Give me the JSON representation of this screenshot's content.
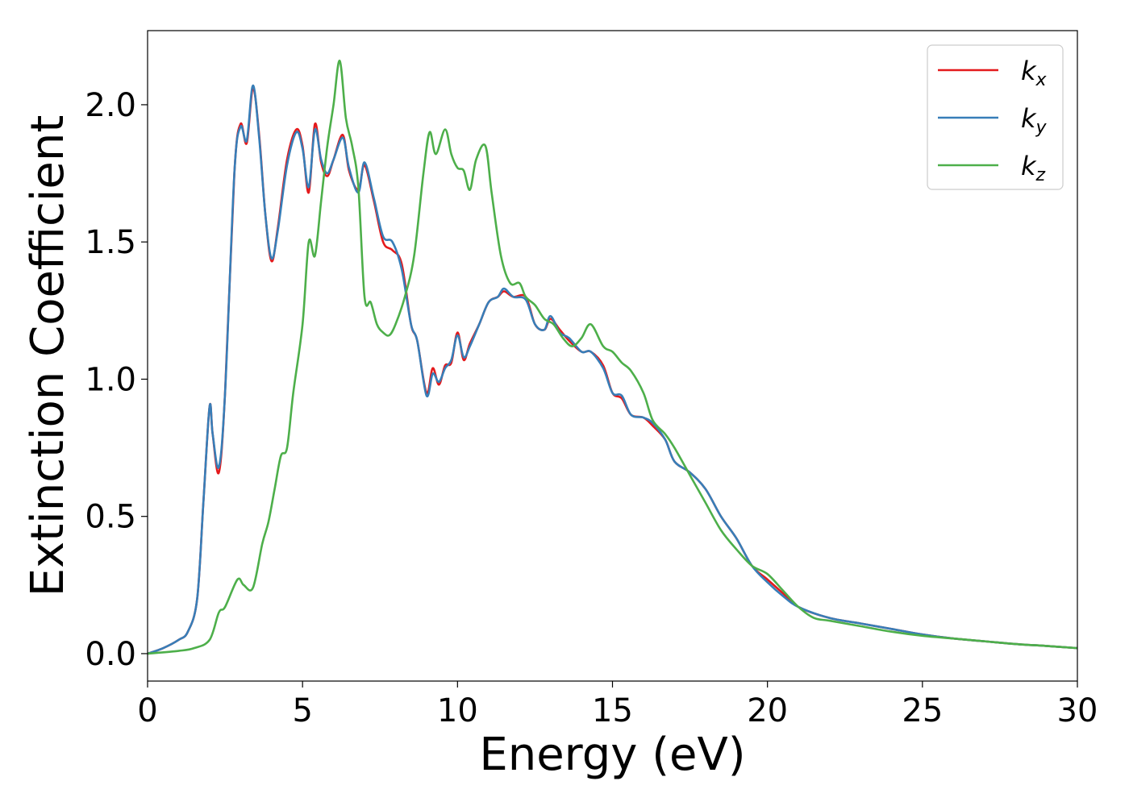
{
  "chart_data": {
    "type": "line",
    "xlabel": "Energy (eV)",
    "ylabel": "Extinction Coefficient",
    "xlim": [
      0,
      30
    ],
    "ylim": [
      -0.1,
      2.27
    ],
    "xticks": [
      0,
      5,
      10,
      15,
      20,
      25,
      30
    ],
    "xtick_labels": [
      "0",
      "5",
      "10",
      "15",
      "20",
      "25",
      "30"
    ],
    "yticks": [
      0.0,
      0.5,
      1.0,
      1.5,
      2.0
    ],
    "ytick_labels": [
      "0.0",
      "0.5",
      "1.0",
      "1.5",
      "2.0"
    ],
    "grid": false,
    "legend_position": "top-right",
    "series": [
      {
        "name": "k_x",
        "label_main": "k",
        "label_sub": "x",
        "color": "#e41a1c",
        "x": [
          0,
          0.5,
          1.0,
          1.3,
          1.6,
          1.8,
          2.0,
          2.1,
          2.3,
          2.5,
          2.8,
          3.0,
          3.2,
          3.4,
          3.6,
          3.8,
          4.0,
          4.2,
          4.5,
          4.8,
          5.0,
          5.2,
          5.4,
          5.6,
          5.8,
          6.0,
          6.3,
          6.5,
          6.8,
          7.0,
          7.3,
          7.6,
          7.9,
          8.2,
          8.5,
          8.7,
          9.0,
          9.2,
          9.4,
          9.6,
          9.8,
          10.0,
          10.2,
          10.4,
          10.7,
          11.0,
          11.3,
          11.5,
          11.8,
          12.2,
          12.5,
          12.8,
          13.0,
          13.3,
          13.6,
          14.0,
          14.3,
          14.7,
          15.0,
          15.3,
          15.6,
          16.0,
          16.3,
          16.7,
          17.0,
          17.5,
          18.0,
          18.5,
          19.0,
          19.5,
          20.0,
          20.5,
          21.0,
          22.0,
          23.0,
          24.0,
          25.0,
          26.0,
          27.0,
          28.0,
          29.0,
          30.0
        ],
        "y": [
          0.0,
          0.02,
          0.05,
          0.08,
          0.2,
          0.55,
          0.9,
          0.8,
          0.66,
          0.95,
          1.75,
          1.93,
          1.86,
          2.06,
          1.89,
          1.6,
          1.43,
          1.55,
          1.8,
          1.91,
          1.85,
          1.68,
          1.93,
          1.79,
          1.74,
          1.8,
          1.89,
          1.76,
          1.69,
          1.78,
          1.65,
          1.5,
          1.47,
          1.42,
          1.2,
          1.14,
          0.95,
          1.04,
          0.98,
          1.05,
          1.06,
          1.17,
          1.07,
          1.13,
          1.2,
          1.28,
          1.3,
          1.32,
          1.3,
          1.3,
          1.2,
          1.18,
          1.22,
          1.18,
          1.14,
          1.1,
          1.1,
          1.05,
          0.95,
          0.93,
          0.87,
          0.86,
          0.83,
          0.78,
          0.7,
          0.66,
          0.6,
          0.5,
          0.42,
          0.32,
          0.27,
          0.22,
          0.17,
          0.13,
          0.11,
          0.09,
          0.07,
          0.055,
          0.045,
          0.035,
          0.028,
          0.02
        ]
      },
      {
        "name": "k_y",
        "label_main": "k",
        "label_sub": "y",
        "color": "#377eb8",
        "x": [
          0,
          0.5,
          1.0,
          1.3,
          1.6,
          1.8,
          2.0,
          2.1,
          2.3,
          2.5,
          2.8,
          3.0,
          3.2,
          3.4,
          3.6,
          3.8,
          4.0,
          4.2,
          4.5,
          4.8,
          5.0,
          5.2,
          5.4,
          5.6,
          5.8,
          6.0,
          6.3,
          6.5,
          6.8,
          7.0,
          7.3,
          7.6,
          7.9,
          8.2,
          8.5,
          8.7,
          9.0,
          9.2,
          9.4,
          9.6,
          9.8,
          10.0,
          10.2,
          10.4,
          10.7,
          11.0,
          11.3,
          11.5,
          11.8,
          12.2,
          12.5,
          12.8,
          13.0,
          13.3,
          13.6,
          14.0,
          14.3,
          14.7,
          15.0,
          15.3,
          15.6,
          16.0,
          16.3,
          16.7,
          17.0,
          17.5,
          18.0,
          18.5,
          19.0,
          19.5,
          20.0,
          20.5,
          21.0,
          22.0,
          23.0,
          24.0,
          25.0,
          26.0,
          27.0,
          28.0,
          29.0,
          30.0
        ],
        "y": [
          0.0,
          0.02,
          0.05,
          0.08,
          0.2,
          0.55,
          0.9,
          0.8,
          0.68,
          0.95,
          1.75,
          1.92,
          1.87,
          2.07,
          1.88,
          1.6,
          1.44,
          1.54,
          1.78,
          1.9,
          1.84,
          1.7,
          1.91,
          1.8,
          1.75,
          1.8,
          1.88,
          1.77,
          1.68,
          1.79,
          1.66,
          1.52,
          1.5,
          1.4,
          1.2,
          1.14,
          0.94,
          1.02,
          0.99,
          1.04,
          1.07,
          1.16,
          1.08,
          1.12,
          1.2,
          1.28,
          1.3,
          1.33,
          1.3,
          1.29,
          1.2,
          1.18,
          1.23,
          1.17,
          1.15,
          1.1,
          1.1,
          1.04,
          0.95,
          0.94,
          0.87,
          0.86,
          0.84,
          0.78,
          0.7,
          0.66,
          0.6,
          0.5,
          0.42,
          0.32,
          0.26,
          0.21,
          0.17,
          0.13,
          0.11,
          0.09,
          0.07,
          0.055,
          0.045,
          0.035,
          0.028,
          0.02
        ]
      },
      {
        "name": "k_z",
        "label_main": "k",
        "label_sub": "z",
        "color": "#4daf4a",
        "x": [
          0,
          1.0,
          1.5,
          2.0,
          2.3,
          2.5,
          2.9,
          3.1,
          3.4,
          3.7,
          3.9,
          4.1,
          4.3,
          4.5,
          4.7,
          5.0,
          5.2,
          5.4,
          5.6,
          5.8,
          6.0,
          6.2,
          6.4,
          6.6,
          6.8,
          7.0,
          7.2,
          7.4,
          7.6,
          7.8,
          8.0,
          8.3,
          8.6,
          8.9,
          9.1,
          9.3,
          9.6,
          9.8,
          10.0,
          10.2,
          10.4,
          10.6,
          10.9,
          11.1,
          11.4,
          11.7,
          12.0,
          12.2,
          12.5,
          12.8,
          13.1,
          13.4,
          13.7,
          14.0,
          14.3,
          14.7,
          15.0,
          15.3,
          15.6,
          16.0,
          16.3,
          16.7,
          17.0,
          17.5,
          18.0,
          18.5,
          19.0,
          19.5,
          20.0,
          20.5,
          21.0,
          21.5,
          22.0,
          23.0,
          24.0,
          25.0,
          26.0,
          27.0,
          28.0,
          29.0,
          30.0
        ],
        "y": [
          0.0,
          0.01,
          0.02,
          0.05,
          0.15,
          0.17,
          0.27,
          0.25,
          0.24,
          0.4,
          0.48,
          0.6,
          0.72,
          0.75,
          0.95,
          1.2,
          1.5,
          1.45,
          1.65,
          1.85,
          2.0,
          2.16,
          1.95,
          1.85,
          1.7,
          1.3,
          1.28,
          1.2,
          1.17,
          1.16,
          1.2,
          1.3,
          1.45,
          1.75,
          1.9,
          1.82,
          1.91,
          1.82,
          1.77,
          1.76,
          1.69,
          1.8,
          1.85,
          1.68,
          1.45,
          1.35,
          1.35,
          1.3,
          1.27,
          1.22,
          1.2,
          1.15,
          1.12,
          1.15,
          1.2,
          1.12,
          1.1,
          1.06,
          1.03,
          0.95,
          0.85,
          0.8,
          0.75,
          0.65,
          0.55,
          0.45,
          0.38,
          0.32,
          0.29,
          0.23,
          0.17,
          0.13,
          0.12,
          0.1,
          0.08,
          0.065,
          0.055,
          0.045,
          0.035,
          0.028,
          0.02
        ]
      }
    ]
  }
}
